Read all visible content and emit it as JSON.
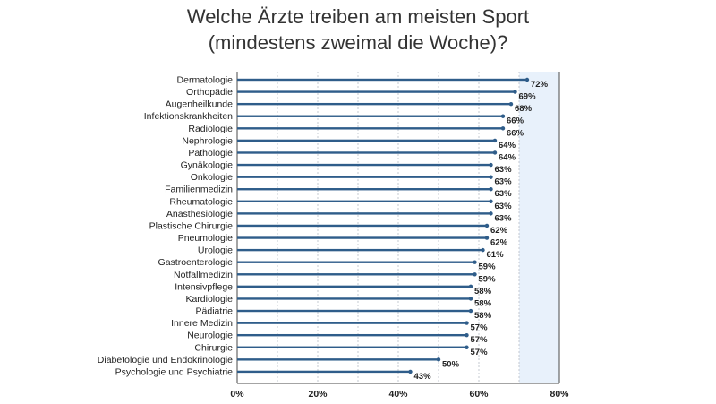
{
  "chart_data": {
    "type": "bar",
    "orientation": "horizontal",
    "title": [
      "Welche Ärzte treiben am meisten Sport",
      "(mindestens zweimal die Woche)?"
    ],
    "categories": [
      "Dermatologie",
      "Orthopädie",
      "Augenheilkunde",
      "Infektionskrankheiten",
      "Radiologie",
      "Nephrologie",
      "Pathologie",
      "Gynäkologie",
      "Onkologie",
      "Familienmedizin",
      "Rheumatologie",
      "Anästhesiologie",
      "Plastische Chirurgie",
      "Pneumologie",
      "Urologie",
      "Gastroenterologie",
      "Notfallmedizin",
      "Intensivpflege",
      "Kardiologie",
      "Pädiatrie",
      "Innere Medizin",
      "Neurologie",
      "Chirurgie",
      "Diabetologie und Endokrinologie",
      "Psychologie und Psychiatrie"
    ],
    "values": [
      72,
      69,
      68,
      66,
      66,
      64,
      64,
      63,
      63,
      63,
      63,
      63,
      62,
      62,
      61,
      59,
      59,
      58,
      58,
      58,
      57,
      57,
      57,
      50,
      43
    ],
    "value_labels": [
      "72%",
      "69%",
      "68%",
      "66%",
      "66%",
      "64%",
      "64%",
      "63%",
      "63%",
      "63%",
      "63%",
      "63%",
      "62%",
      "62%",
      "61%",
      "59%",
      "59%",
      "58%",
      "58%",
      "58%",
      "57%",
      "57%",
      "57%",
      "50%",
      "43%"
    ],
    "xlim": [
      0,
      80
    ],
    "xticks": [
      0,
      20,
      40,
      60,
      80
    ],
    "xtick_labels": [
      "0%",
      "20%",
      "40%",
      "60%",
      "80%"
    ],
    "xlabel": "",
    "ylabel": "",
    "grid": true,
    "legend": false,
    "colors": {
      "bar": "#2f5d8a",
      "bar_endpoint": "#2f5d8a",
      "highlight_band": "#e8f1fb",
      "grid": "#b8bec6",
      "axis": "#4a4a4a",
      "text": "#222222"
    }
  }
}
